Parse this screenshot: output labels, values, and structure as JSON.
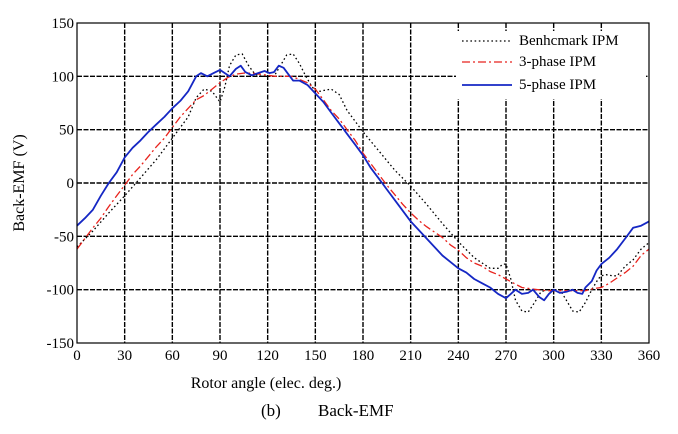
{
  "chart_data": {
    "type": "line",
    "title": "",
    "caption_tag": "(b)",
    "caption_text": "Back-EMF",
    "xlabel": "Rotor angle (elec. deg.)",
    "ylabel": "Back-EMF (V)",
    "xlim": [
      0,
      360
    ],
    "ylim": [
      -150,
      150
    ],
    "xticks": [
      0,
      30,
      60,
      90,
      120,
      150,
      180,
      210,
      240,
      270,
      300,
      330,
      360
    ],
    "yticks": [
      150,
      100,
      50,
      0,
      -50,
      -100,
      -150
    ],
    "grid": true,
    "legend_position": "top-right",
    "series": [
      {
        "name": "Benhcmark IPM",
        "color": "#000000",
        "style": "dotted",
        "points": [
          [
            0,
            -60
          ],
          [
            10,
            -45
          ],
          [
            20,
            -28
          ],
          [
            30,
            -12
          ],
          [
            40,
            5
          ],
          [
            50,
            22
          ],
          [
            60,
            42
          ],
          [
            70,
            62
          ],
          [
            75,
            80
          ],
          [
            80,
            88
          ],
          [
            85,
            86
          ],
          [
            88,
            80
          ],
          [
            90,
            76
          ],
          [
            93,
            90
          ],
          [
            96,
            110
          ],
          [
            100,
            120
          ],
          [
            104,
            121
          ],
          [
            108,
            110
          ],
          [
            112,
            102
          ],
          [
            116,
            100
          ],
          [
            120,
            100
          ],
          [
            124,
            100
          ],
          [
            128,
            110
          ],
          [
            132,
            120
          ],
          [
            136,
            121
          ],
          [
            140,
            112
          ],
          [
            144,
            100
          ],
          [
            148,
            90
          ],
          [
            150,
            87
          ],
          [
            153,
            86
          ],
          [
            156,
            87
          ],
          [
            160,
            88
          ],
          [
            165,
            83
          ],
          [
            170,
            68
          ],
          [
            180,
            48
          ],
          [
            190,
            30
          ],
          [
            200,
            12
          ],
          [
            210,
            -3
          ],
          [
            220,
            -20
          ],
          [
            230,
            -38
          ],
          [
            240,
            -55
          ],
          [
            250,
            -70
          ],
          [
            260,
            -80
          ],
          [
            265,
            -80
          ],
          [
            268,
            -76
          ],
          [
            270,
            -76
          ],
          [
            273,
            -90
          ],
          [
            276,
            -110
          ],
          [
            280,
            -120
          ],
          [
            284,
            -121
          ],
          [
            288,
            -112
          ],
          [
            292,
            -102
          ],
          [
            296,
            -100
          ],
          [
            300,
            -100
          ],
          [
            304,
            -100
          ],
          [
            308,
            -110
          ],
          [
            312,
            -120
          ],
          [
            316,
            -121
          ],
          [
            320,
            -112
          ],
          [
            324,
            -100
          ],
          [
            328,
            -90
          ],
          [
            330,
            -87
          ],
          [
            333,
            -86
          ],
          [
            337,
            -87
          ],
          [
            340,
            -87
          ],
          [
            345,
            -78
          ],
          [
            350,
            -72
          ],
          [
            355,
            -62
          ],
          [
            360,
            -56
          ]
        ]
      },
      {
        "name": "3-phase IPM",
        "color": "#e8231d",
        "style": "dashdot",
        "points": [
          [
            0,
            -62
          ],
          [
            5,
            -52
          ],
          [
            10,
            -42
          ],
          [
            15,
            -33
          ],
          [
            20,
            -22
          ],
          [
            25,
            -12
          ],
          [
            30,
            -2
          ],
          [
            35,
            8
          ],
          [
            40,
            16
          ],
          [
            45,
            25
          ],
          [
            50,
            34
          ],
          [
            55,
            42
          ],
          [
            60,
            52
          ],
          [
            65,
            62
          ],
          [
            70,
            70
          ],
          [
            75,
            78
          ],
          [
            80,
            82
          ],
          [
            85,
            88
          ],
          [
            90,
            94
          ],
          [
            95,
            99
          ],
          [
            100,
            102
          ],
          [
            105,
            103
          ],
          [
            110,
            103
          ],
          [
            115,
            102
          ],
          [
            120,
            101
          ],
          [
            125,
            100
          ],
          [
            130,
            100
          ],
          [
            135,
            100
          ],
          [
            140,
            97
          ],
          [
            145,
            94
          ],
          [
            150,
            88
          ],
          [
            155,
            78
          ],
          [
            160,
            68
          ],
          [
            165,
            60
          ],
          [
            170,
            50
          ],
          [
            175,
            40
          ],
          [
            180,
            28
          ],
          [
            185,
            18
          ],
          [
            190,
            8
          ],
          [
            195,
            -2
          ],
          [
            200,
            -11
          ],
          [
            205,
            -20
          ],
          [
            210,
            -28
          ],
          [
            215,
            -35
          ],
          [
            220,
            -41
          ],
          [
            225,
            -46
          ],
          [
            230,
            -51
          ],
          [
            235,
            -58
          ],
          [
            240,
            -63
          ],
          [
            245,
            -70
          ],
          [
            250,
            -75
          ],
          [
            255,
            -78
          ],
          [
            260,
            -83
          ],
          [
            265,
            -86
          ],
          [
            270,
            -90
          ],
          [
            275,
            -94
          ],
          [
            280,
            -98
          ],
          [
            285,
            -99
          ],
          [
            290,
            -100
          ],
          [
            295,
            -101
          ],
          [
            300,
            -101
          ],
          [
            305,
            -101
          ],
          [
            310,
            -101
          ],
          [
            315,
            -101
          ],
          [
            320,
            -101
          ],
          [
            325,
            -99
          ],
          [
            330,
            -98
          ],
          [
            335,
            -94
          ],
          [
            340,
            -89
          ],
          [
            345,
            -84
          ],
          [
            350,
            -78
          ],
          [
            355,
            -68
          ],
          [
            360,
            -62
          ]
        ]
      },
      {
        "name": "5-phase IPM",
        "color": "#1527c4",
        "style": "solid",
        "points": [
          [
            0,
            -40
          ],
          [
            5,
            -33
          ],
          [
            10,
            -25
          ],
          [
            15,
            -12
          ],
          [
            20,
            0
          ],
          [
            25,
            10
          ],
          [
            30,
            24
          ],
          [
            35,
            33
          ],
          [
            40,
            40
          ],
          [
            45,
            48
          ],
          [
            50,
            55
          ],
          [
            55,
            62
          ],
          [
            60,
            70
          ],
          [
            65,
            77
          ],
          [
            70,
            86
          ],
          [
            75,
            100
          ],
          [
            78,
            103
          ],
          [
            82,
            100
          ],
          [
            86,
            103
          ],
          [
            90,
            106
          ],
          [
            93,
            103
          ],
          [
            96,
            100
          ],
          [
            100,
            107
          ],
          [
            103,
            110
          ],
          [
            106,
            104
          ],
          [
            110,
            101
          ],
          [
            114,
            103
          ],
          [
            118,
            105
          ],
          [
            121,
            103
          ],
          [
            124,
            104
          ],
          [
            127,
            110
          ],
          [
            130,
            108
          ],
          [
            133,
            102
          ],
          [
            136,
            96
          ],
          [
            140,
            96
          ],
          [
            145,
            92
          ],
          [
            150,
            84
          ],
          [
            155,
            76
          ],
          [
            160,
            66
          ],
          [
            165,
            56
          ],
          [
            170,
            46
          ],
          [
            175,
            36
          ],
          [
            180,
            26
          ],
          [
            185,
            14
          ],
          [
            190,
            4
          ],
          [
            195,
            -6
          ],
          [
            200,
            -16
          ],
          [
            205,
            -26
          ],
          [
            210,
            -36
          ],
          [
            215,
            -44
          ],
          [
            220,
            -52
          ],
          [
            225,
            -60
          ],
          [
            230,
            -68
          ],
          [
            235,
            -74
          ],
          [
            240,
            -80
          ],
          [
            245,
            -84
          ],
          [
            250,
            -90
          ],
          [
            255,
            -94
          ],
          [
            260,
            -98
          ],
          [
            265,
            -104
          ],
          [
            270,
            -108
          ],
          [
            273,
            -104
          ],
          [
            276,
            -100
          ],
          [
            280,
            -104
          ],
          [
            284,
            -103
          ],
          [
            287,
            -100
          ],
          [
            291,
            -107
          ],
          [
            294,
            -110
          ],
          [
            297,
            -104
          ],
          [
            300,
            -100
          ],
          [
            304,
            -103
          ],
          [
            308,
            -102
          ],
          [
            312,
            -100
          ],
          [
            315,
            -103
          ],
          [
            318,
            -104
          ],
          [
            320,
            -98
          ],
          [
            324,
            -92
          ],
          [
            327,
            -82
          ],
          [
            330,
            -76
          ],
          [
            335,
            -70
          ],
          [
            340,
            -62
          ],
          [
            345,
            -52
          ],
          [
            350,
            -42
          ],
          [
            355,
            -40
          ],
          [
            360,
            -36
          ]
        ]
      }
    ]
  }
}
